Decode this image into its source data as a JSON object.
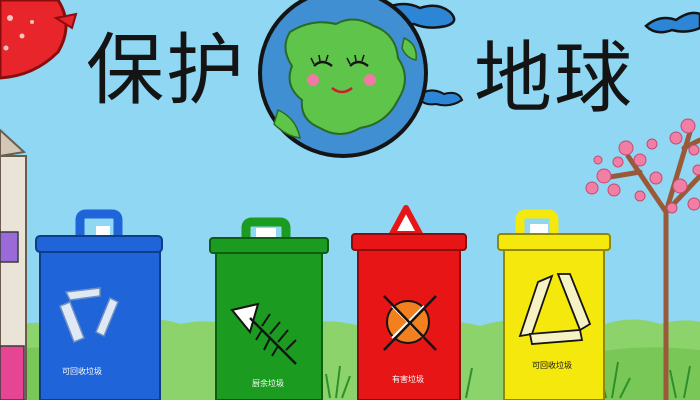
{
  "title": {
    "left": "保护",
    "right": "地球"
  },
  "bins": [
    {
      "color": "#1f64d8",
      "label": "可回收垃圾"
    },
    {
      "color": "#1b9b1f",
      "label": "厨余垃圾"
    },
    {
      "color": "#e71515",
      "label": "有害垃圾"
    },
    {
      "color": "#f5e80c",
      "label": "可回收垃圾"
    }
  ],
  "colors": {
    "sky": "#8fd7f2",
    "grass": "#8bd36a",
    "earth_ocean": "#3f8fd2",
    "earth_land": "#5ec44a",
    "blossom": "#f07fa3",
    "sun": "#e8252a"
  }
}
